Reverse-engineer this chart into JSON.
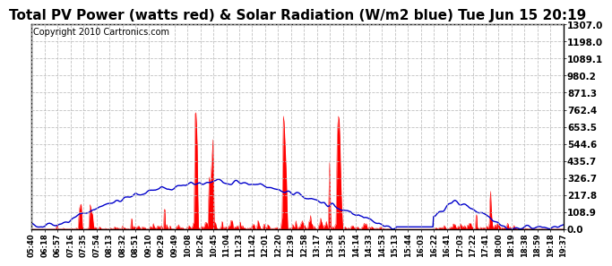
{
  "title": "Total PV Power (watts red) & Solar Radiation (W/m2 blue) Tue Jun 15 20:19",
  "copyright": "Copyright 2010 Cartronics.com",
  "ymax": 1307.0,
  "yticks": [
    0.0,
    108.9,
    217.8,
    326.7,
    435.7,
    544.6,
    653.5,
    762.4,
    871.3,
    980.2,
    1089.1,
    1198.0,
    1307.0
  ],
  "ytick_labels": [
    "0.0",
    "108.9",
    "217.8",
    "326.7",
    "435.7",
    "544.6",
    "653.5",
    "762.4",
    "871.3",
    "980.2",
    "1089.1",
    "1198.0",
    "1307.0"
  ],
  "xtick_labels": [
    "05:40",
    "06:18",
    "06:57",
    "07:16",
    "07:35",
    "07:54",
    "08:13",
    "08:32",
    "08:51",
    "09:10",
    "09:29",
    "09:49",
    "10:08",
    "10:26",
    "10:45",
    "11:04",
    "11:23",
    "11:42",
    "12:01",
    "12:20",
    "12:39",
    "12:58",
    "13:17",
    "13:36",
    "13:55",
    "14:14",
    "14:33",
    "14:53",
    "15:13",
    "15:44",
    "16:03",
    "16:22",
    "16:41",
    "17:03",
    "17:22",
    "17:41",
    "18:00",
    "18:19",
    "18:38",
    "18:59",
    "19:18",
    "19:37"
  ],
  "pv_color": "#FF0000",
  "solar_color": "#0000CC",
  "background_color": "#FFFFFF",
  "grid_color": "#BBBBBB",
  "title_fontsize": 11,
  "copyright_fontsize": 7
}
